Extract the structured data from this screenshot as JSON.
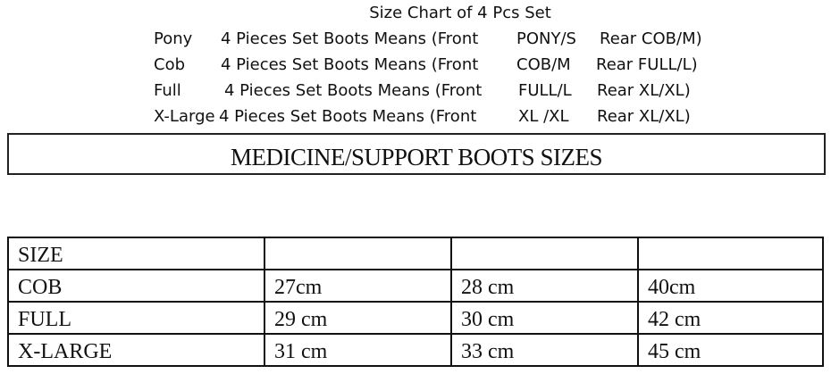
{
  "title": "Size Chart of 4 Pcs Set",
  "sets": [
    {
      "size": "Pony",
      "desc": "4 Pieces Set Boots Means (Front",
      "front": "PONY/S",
      "rear": "Rear COB/M)"
    },
    {
      "size": "Cob",
      "desc": "4 Pieces Set Boots Means (Front",
      "front": "COB/M",
      "rear": "Rear FULL/L)"
    },
    {
      "size": "Full",
      "desc": "4 Pieces Set Boots Means (Front",
      "front": "FULL/L",
      "rear": "Rear XL/XL)"
    },
    {
      "size": "X-Large",
      "desc": "4 Pieces Set Boots Means (Front",
      "front": "XL /XL",
      "rear": "Rear XL/XL)"
    }
  ],
  "banner": "MEDICINE/SUPPORT BOOTS SIZES",
  "table": {
    "header": [
      "SIZE",
      "",
      "",
      ""
    ],
    "rows": [
      [
        "COB",
        "27cm",
        "28 cm",
        "40cm"
      ],
      [
        "FULL",
        "29 cm",
        "30 cm",
        "42 cm"
      ],
      [
        "X-LARGE",
        "31 cm",
        "33 cm",
        "45 cm"
      ]
    ]
  }
}
